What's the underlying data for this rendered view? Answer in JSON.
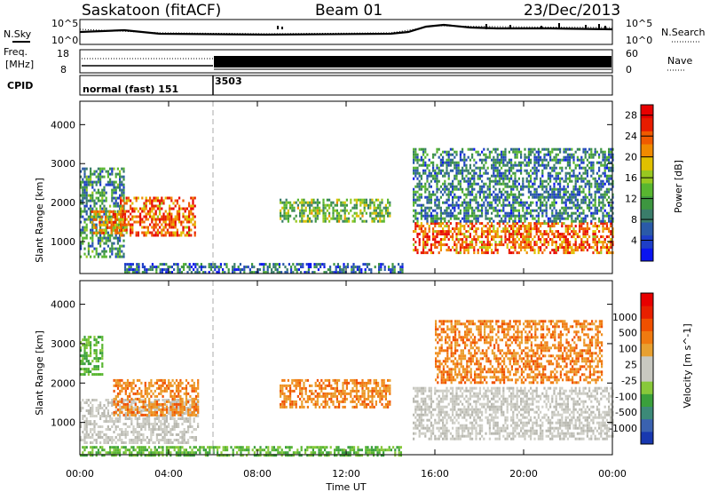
{
  "header": {
    "station": "Saskatoon (fitACF)",
    "beam": "Beam 01",
    "date": "23/Dec/2013"
  },
  "status_panels": {
    "n_sky_label": "N.Sky",
    "n_search_label": "N.Search",
    "noise_ticks": [
      "10^5",
      "10^0"
    ],
    "freq_label_line1": "Freq.",
    "freq_label_line2": "[MHz]",
    "freq_ticks": [
      "18",
      "8"
    ],
    "nave_label": "Nave",
    "nave_ticks": [
      "60",
      "0"
    ],
    "cpid_label": "CPID",
    "cpid_segments": [
      {
        "label": "normal (fast) 151",
        "start_hour": 0
      },
      {
        "label": "3503",
        "start_hour": 6
      }
    ],
    "freq_change_hour": 6
  },
  "chart_data": [
    {
      "type": "heatmap",
      "title": "",
      "ylabel": "Slant Range [km]",
      "xlabel": "Time UT",
      "x_ticks": [
        "00:00",
        "04:00",
        "08:00",
        "12:00",
        "16:00",
        "20:00",
        "00:00"
      ],
      "xlim_hours": [
        0,
        24
      ],
      "y_ticks": [
        1000,
        2000,
        3000,
        4000
      ],
      "ylim": [
        180,
        4600
      ],
      "colorbar": {
        "label": "Power [dB]",
        "ticks": [
          "4",
          "8",
          "12",
          "16",
          "20",
          "24",
          "28"
        ],
        "range": [
          0,
          30
        ],
        "colors": [
          "#0a14f0",
          "#1e3ec8",
          "#2a5aa8",
          "#3a7d6a",
          "#3d9640",
          "#58b630",
          "#98c820",
          "#e0c000",
          "#f08a00",
          "#f05a00",
          "#e81c00",
          "#e80000"
        ]
      },
      "echo_regions": [
        {
          "t0": 0.0,
          "t1": 2.0,
          "r0": 600,
          "r1": 2900,
          "level": 9
        },
        {
          "t0": 1.8,
          "t1": 5.2,
          "r0": 1150,
          "r1": 2150,
          "level": 24
        },
        {
          "t0": 0.5,
          "t1": 2.0,
          "r0": 1200,
          "r1": 1800,
          "level": 22
        },
        {
          "t0": 9.0,
          "t1": 14.0,
          "r0": 1500,
          "r1": 2100,
          "level": 14
        },
        {
          "t0": 15.0,
          "t1": 24.0,
          "r0": 700,
          "r1": 1500,
          "level": 24
        },
        {
          "t0": 15.0,
          "t1": 24.0,
          "r0": 1500,
          "r1": 3400,
          "level": 8
        },
        {
          "t0": 2.0,
          "t1": 14.5,
          "r0": 180,
          "r1": 450,
          "level": 6
        }
      ]
    },
    {
      "type": "heatmap",
      "title": "",
      "ylabel": "Slant Range [km]",
      "xlabel": "Time UT",
      "x_ticks": [
        "00:00",
        "04:00",
        "08:00",
        "12:00",
        "16:00",
        "20:00",
        "00:00"
      ],
      "xlim_hours": [
        0,
        24
      ],
      "y_ticks": [
        1000,
        2000,
        3000,
        4000
      ],
      "ylim": [
        180,
        4600
      ],
      "colorbar": {
        "label": "Velocity [m s^-1]",
        "ticks": [
          "1000",
          "500",
          "100",
          "25",
          "-25",
          "-100",
          "-500",
          "-1000"
        ],
        "colors": [
          "#1838b0",
          "#3a62b0",
          "#3c8a78",
          "#3aa03c",
          "#88c83a",
          "#c8c8c0",
          "#c8c8c0",
          "#e8a030",
          "#f07a10",
          "#f05000",
          "#e82000",
          "#e80000"
        ]
      },
      "echo_regions": [
        {
          "t0": 0.0,
          "t1": 1.0,
          "r0": 2200,
          "r1": 3200,
          "level": "green"
        },
        {
          "t0": 0.0,
          "t1": 5.3,
          "r0": 500,
          "r1": 1600,
          "level": "grey"
        },
        {
          "t0": 1.5,
          "t1": 5.3,
          "r0": 1200,
          "r1": 2100,
          "level": "orange"
        },
        {
          "t0": 9.0,
          "t1": 14.0,
          "r0": 1400,
          "r1": 2100,
          "level": "orange"
        },
        {
          "t0": 15.0,
          "t1": 24.0,
          "r0": 600,
          "r1": 1900,
          "level": "grey"
        },
        {
          "t0": 16.0,
          "t1": 23.5,
          "r0": 2000,
          "r1": 3600,
          "level": "orange"
        },
        {
          "t0": 0.0,
          "t1": 14.5,
          "r0": 180,
          "r1": 400,
          "level": "green"
        }
      ]
    }
  ]
}
